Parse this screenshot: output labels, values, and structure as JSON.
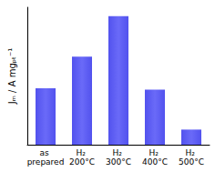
{
  "chart_data": {
    "type": "bar",
    "y_label": "Jₘ / A mgₚₜ⁻¹",
    "categories": [
      "as prepared",
      "H₂ 200°C",
      "H₂ 300°C",
      "H₂ 400°C",
      "H₂ 500°C"
    ],
    "values": [
      0.82,
      1.28,
      1.87,
      0.8,
      0.22
    ],
    "color": "#5252ee",
    "ylim": [
      0,
      2.0
    ],
    "tick_labels": "x",
    "grid": false
  }
}
